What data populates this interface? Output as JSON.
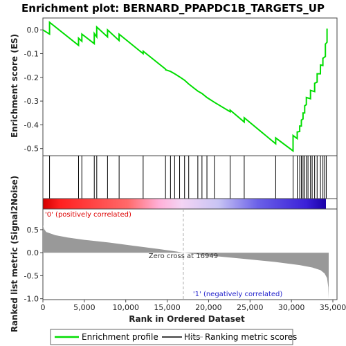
{
  "chart_data": {
    "type": "line",
    "title": "Enrichment plot: BERNARD_PPAPDC1B_TARGETS_UP",
    "xlabel": "Rank in Ordered Dataset",
    "ylabel_top": "Enrichment score (ES)",
    "ylabel_bottom": "Ranked list metric (Signal2Noise)",
    "x_range": [
      0,
      35500
    ],
    "x_ticks": [
      0,
      5000,
      10000,
      15000,
      20000,
      25000,
      30000,
      35000
    ],
    "x_tick_labels": [
      "0",
      "5,000",
      "10,000",
      "15,000",
      "20,000",
      "25,000",
      "30,000",
      "35,000"
    ],
    "es_range": [
      -0.53,
      0.05
    ],
    "es_ticks": [
      0.0,
      -0.1,
      -0.2,
      -0.3,
      -0.4,
      -0.5
    ],
    "es_tick_labels": [
      "0.0",
      "-0.1",
      "-0.2",
      "-0.3",
      "-0.4",
      "-0.5"
    ],
    "metric_range": [
      -1.02,
      0.95
    ],
    "metric_ticks": [
      0.5,
      0.0,
      -0.5,
      -1.0
    ],
    "metric_tick_labels": [
      "0.5",
      "0.0",
      "-0.5",
      "-1.0"
    ],
    "n_genes": 34500,
    "hits": [
      800,
      4300,
      4700,
      6200,
      6500,
      7800,
      9200,
      12100,
      14800,
      15400,
      15900,
      16500,
      17100,
      17600,
      18700,
      19200,
      19800,
      20700,
      22600,
      24300,
      28100,
      30200,
      30700,
      31000,
      31200,
      31400,
      31600,
      31800,
      32000,
      32300,
      32500,
      32800,
      33100,
      33500,
      33800,
      34000,
      34200
    ],
    "es_profile": [
      [
        0,
        0.0
      ],
      [
        799,
        -0.018
      ],
      [
        800,
        0.032
      ],
      [
        4299,
        -0.065
      ],
      [
        4300,
        -0.035
      ],
      [
        4699,
        -0.048
      ],
      [
        4700,
        -0.018
      ],
      [
        6199,
        -0.058
      ],
      [
        6200,
        -0.015
      ],
      [
        6499,
        -0.03
      ],
      [
        6500,
        0.012
      ],
      [
        7799,
        -0.03
      ],
      [
        7800,
        0.0
      ],
      [
        9199,
        -0.045
      ],
      [
        9200,
        -0.018
      ],
      [
        12099,
        -0.1
      ],
      [
        12100,
        -0.09
      ],
      [
        14799,
        -0.165
      ],
      [
        14800,
        -0.168
      ],
      [
        15400,
        -0.175
      ],
      [
        15900,
        -0.185
      ],
      [
        16500,
        -0.198
      ],
      [
        17100,
        -0.212
      ],
      [
        17600,
        -0.228
      ],
      [
        18700,
        -0.258
      ],
      [
        19200,
        -0.268
      ],
      [
        19800,
        -0.285
      ],
      [
        20700,
        -0.305
      ],
      [
        22599,
        -0.345
      ],
      [
        22600,
        -0.338
      ],
      [
        24299,
        -0.388
      ],
      [
        24300,
        -0.37
      ],
      [
        28099,
        -0.48
      ],
      [
        28100,
        -0.455
      ],
      [
        30199,
        -0.51
      ],
      [
        30200,
        -0.445
      ],
      [
        30699,
        -0.458
      ],
      [
        30700,
        -0.43
      ],
      [
        30999,
        -0.428
      ],
      [
        31000,
        -0.405
      ],
      [
        31199,
        -0.405
      ],
      [
        31200,
        -0.38
      ],
      [
        31399,
        -0.375
      ],
      [
        31400,
        -0.35
      ],
      [
        31599,
        -0.35
      ],
      [
        31600,
        -0.32
      ],
      [
        31799,
        -0.315
      ],
      [
        31800,
        -0.285
      ],
      [
        32299,
        -0.29
      ],
      [
        32300,
        -0.255
      ],
      [
        32799,
        -0.26
      ],
      [
        32800,
        -0.225
      ],
      [
        33099,
        -0.22
      ],
      [
        33100,
        -0.185
      ],
      [
        33499,
        -0.185
      ],
      [
        33500,
        -0.148
      ],
      [
        33799,
        -0.15
      ],
      [
        33800,
        -0.12
      ],
      [
        34099,
        -0.112
      ],
      [
        34100,
        -0.06
      ],
      [
        34299,
        -0.052
      ],
      [
        34300,
        0.005
      ]
    ],
    "metric_profile": [
      [
        0,
        0.6
      ],
      [
        120,
        0.52
      ],
      [
        400,
        0.45
      ],
      [
        1500,
        0.38
      ],
      [
        3000,
        0.33
      ],
      [
        5000,
        0.28
      ],
      [
        8000,
        0.22
      ],
      [
        11000,
        0.15
      ],
      [
        14000,
        0.08
      ],
      [
        16000,
        0.03
      ],
      [
        16949,
        0.0
      ],
      [
        20000,
        -0.06
      ],
      [
        24000,
        -0.13
      ],
      [
        28000,
        -0.2
      ],
      [
        31000,
        -0.27
      ],
      [
        32500,
        -0.32
      ],
      [
        33500,
        -0.38
      ],
      [
        34000,
        -0.45
      ],
      [
        34300,
        -0.55
      ],
      [
        34450,
        -0.75
      ],
      [
        34500,
        -1.0
      ]
    ],
    "zero_cross_label": "Zero cross at 16949",
    "pos_label": "'0' (positively correlated)",
    "neg_label": "'1' (negatively correlated)",
    "legend": [
      "Enrichment profile",
      "Hits",
      "Ranking metric scores"
    ],
    "colors": {
      "es": "#00dd00",
      "hits": "#000000",
      "metric": "#999999",
      "pos_text": "#dd0000",
      "neg_text": "#2222cc"
    }
  }
}
